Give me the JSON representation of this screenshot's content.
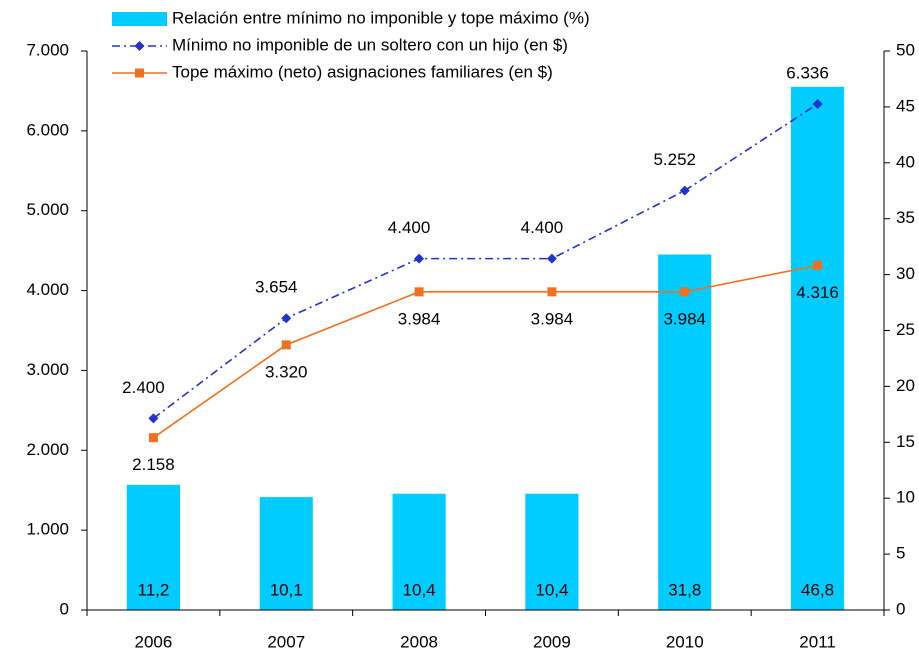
{
  "chart_data": {
    "type": "bar",
    "categories": [
      "2006",
      "2007",
      "2008",
      "2009",
      "2010",
      "2011"
    ],
    "series": [
      {
        "name": "Relación entre mínimo no imponible y tope máximo (%)",
        "type": "bar",
        "axis": "y2",
        "color": "#00ccff",
        "values": [
          11.2,
          10.1,
          10.4,
          10.4,
          31.8,
          46.8
        ],
        "value_labels": [
          "11,2",
          "10,1",
          "10,4",
          "10,4",
          "31,8",
          "46,8"
        ]
      },
      {
        "name": "Mínimo no imponible de un soltero con un hijo  (en $)",
        "type": "line",
        "axis": "y",
        "color": "#2233cc",
        "linestyle": "dashdot",
        "marker": "diamond",
        "values": [
          2400,
          3654,
          4400,
          4400,
          5252,
          6336
        ],
        "value_labels": [
          "2.400",
          "3.654",
          "4.400",
          "4.400",
          "5.252",
          "6.336"
        ]
      },
      {
        "name": "Tope máximo (neto) asignaciones familiares (en $)",
        "type": "line",
        "axis": "y",
        "color": "#f07020",
        "linestyle": "solid",
        "marker": "square",
        "values": [
          2158,
          3320,
          3984,
          3984,
          3984,
          4316
        ],
        "value_labels": [
          "2.158",
          "3.320",
          "3.984",
          "3.984",
          "3.984",
          "4.316"
        ]
      }
    ],
    "ylim": [
      0,
      7000
    ],
    "yticks": [
      0,
      {
        "value": 1000,
        "label": "1.000"
      },
      {
        "value": 2000,
        "label": "2.000"
      },
      {
        "value": 3000,
        "label": "3.000"
      },
      {
        "value": 4000,
        "label": "4.000"
      },
      {
        "value": 5000,
        "label": "5.000"
      },
      {
        "value": 6000,
        "label": "6.000"
      },
      {
        "value": 7000,
        "label": "7.000"
      }
    ],
    "y2lim": [
      0,
      50
    ],
    "y2ticks": [
      0,
      5,
      10,
      15,
      20,
      25,
      30,
      35,
      40,
      45,
      50
    ],
    "grid": false,
    "legend": "top"
  }
}
